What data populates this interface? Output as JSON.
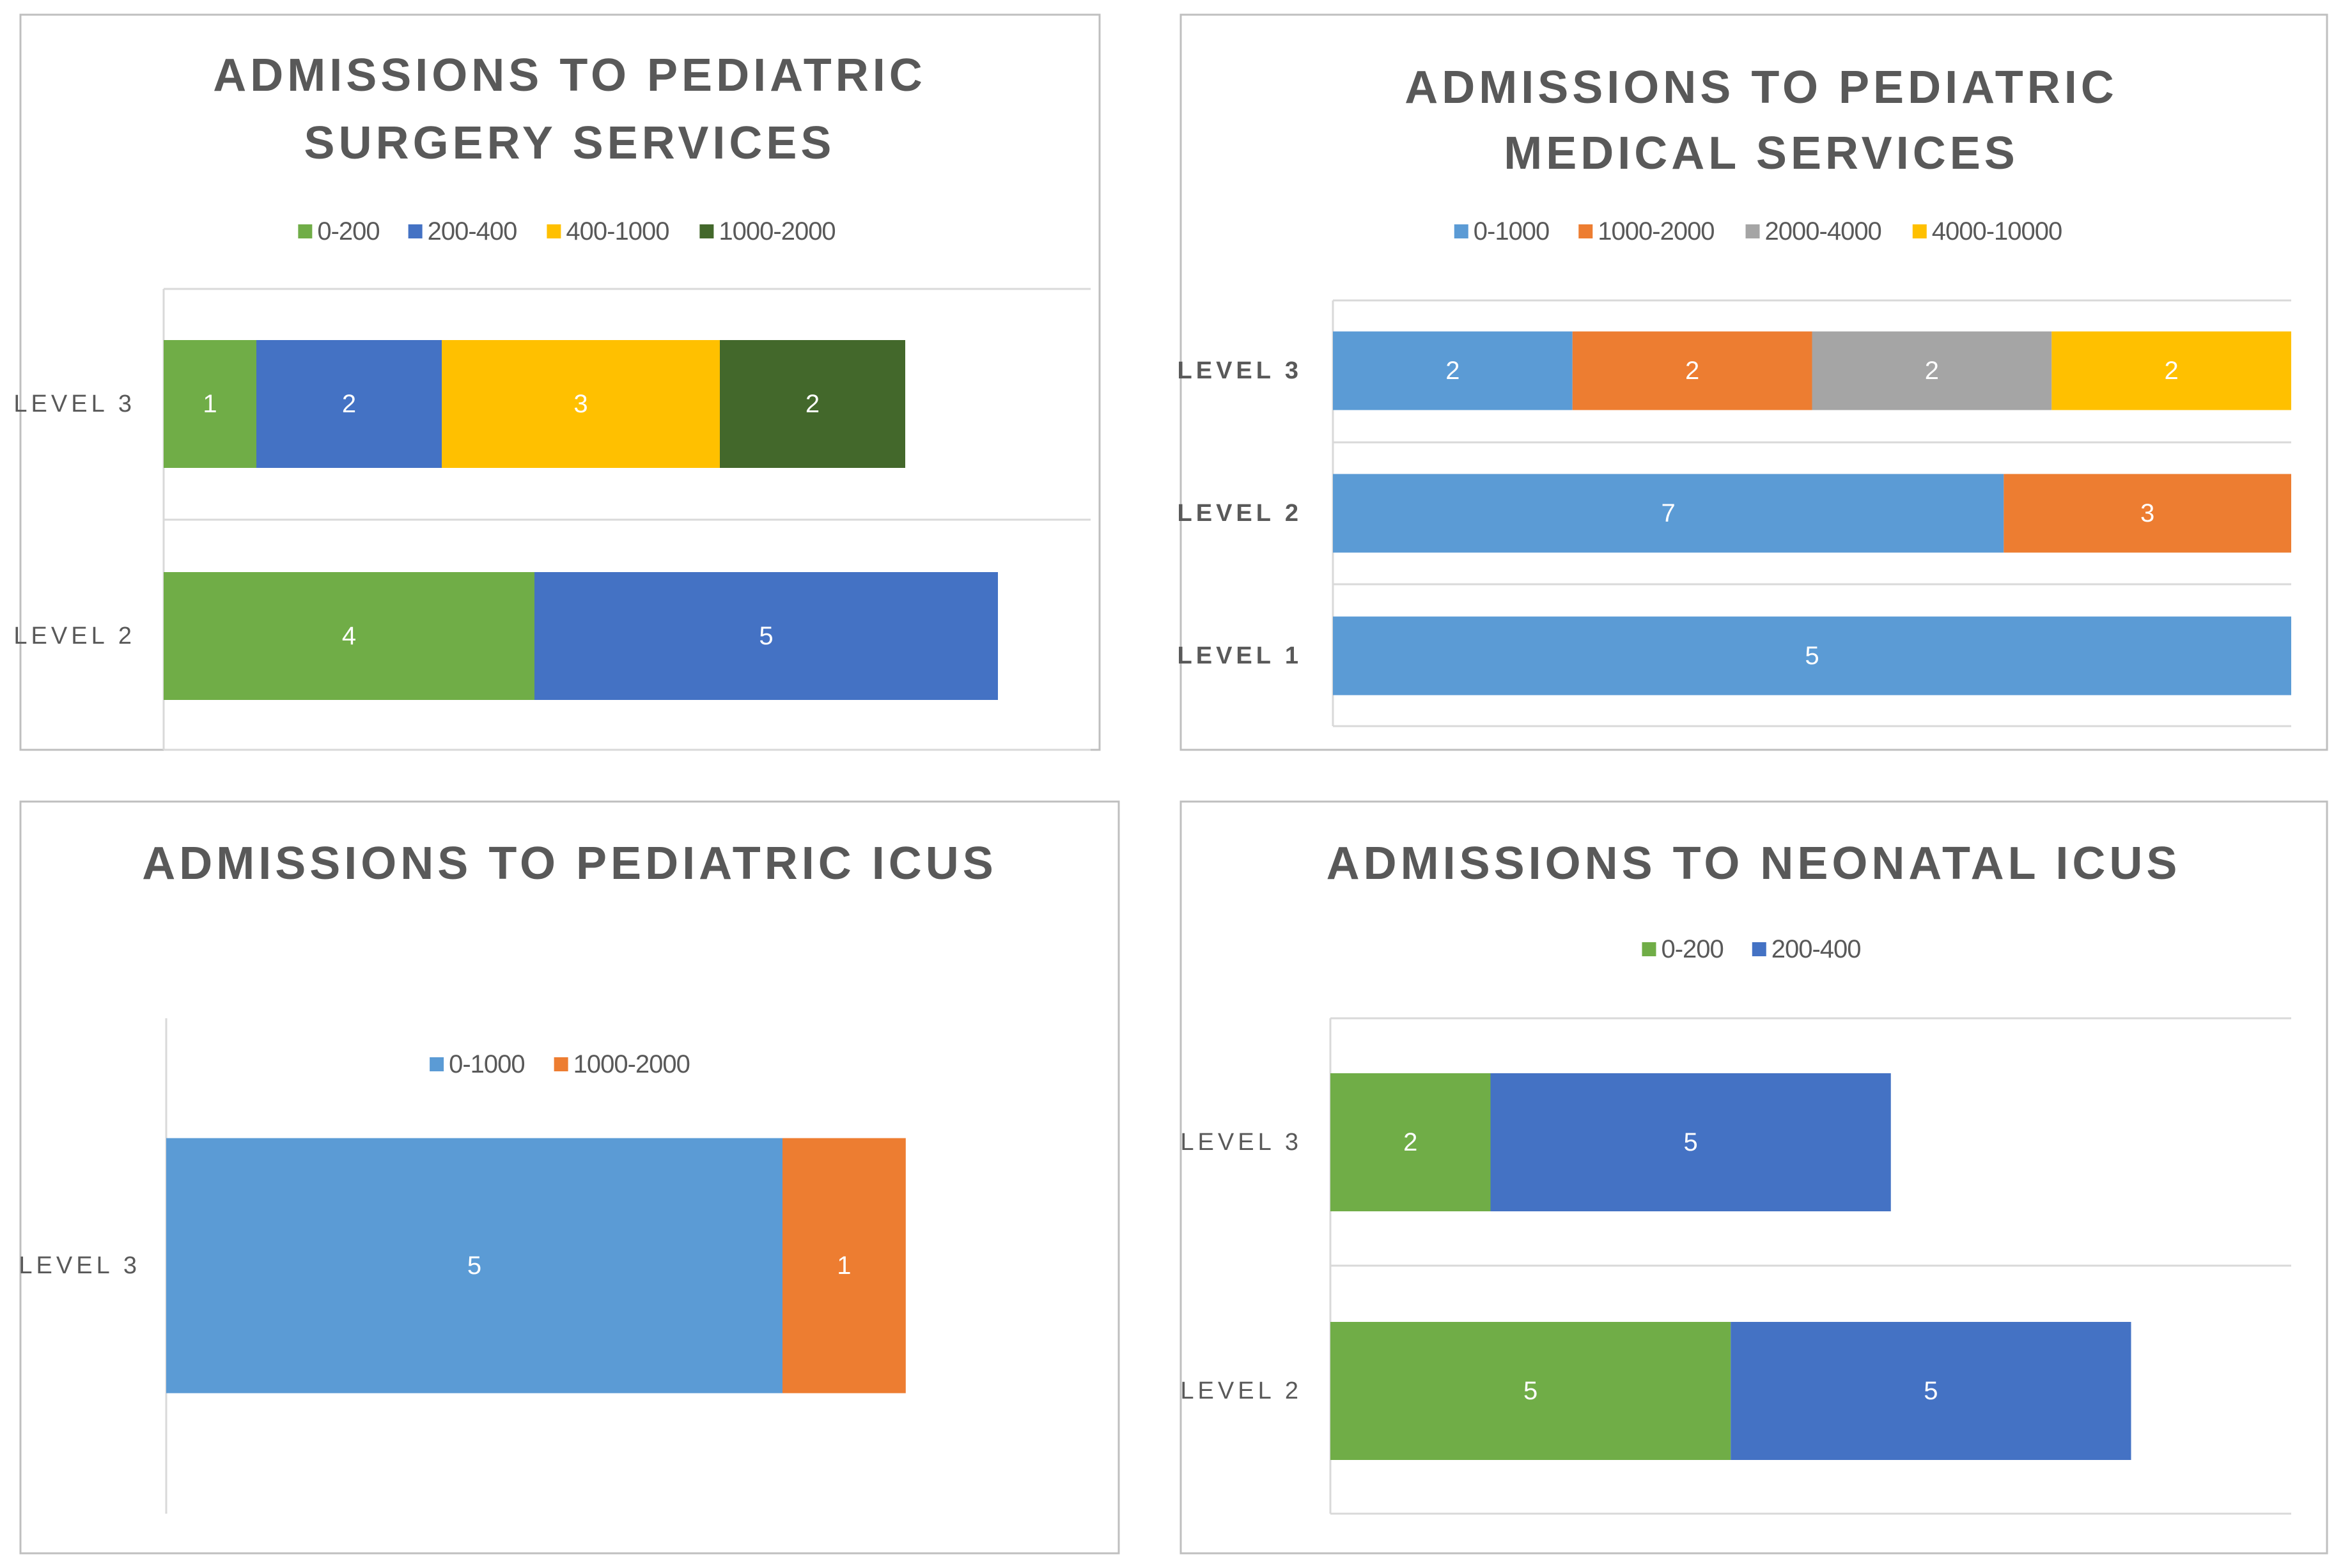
{
  "colors": {
    "green": "#70AD47",
    "blue": "#4472C4",
    "gold": "#FFC000",
    "darkgreen": "#43682B",
    "lightblue": "#5B9BD5",
    "orange": "#ED7D31",
    "gray": "#A5A5A5",
    "title": "#595959",
    "label": "#595959",
    "grid": "#D9D9D9",
    "border": "#BFBFBF",
    "datalabel": "#FFFFFF"
  },
  "chart_data": [
    {
      "type": "bar",
      "orientation": "horizontal",
      "stacked": true,
      "title_lines": [
        "ADMISSIONS TO PEDIATRIC",
        "SURGERY SERVICES"
      ],
      "categories": [
        "LEVEL 3",
        "LEVEL 2"
      ],
      "series": [
        {
          "name": "0-200",
          "color": "#70AD47",
          "values": [
            1,
            4
          ]
        },
        {
          "name": "200-400",
          "color": "#4472C4",
          "values": [
            2,
            5
          ]
        },
        {
          "name": "400-1000",
          "color": "#FFC000",
          "values": [
            3,
            0
          ]
        },
        {
          "name": "1000-2000",
          "color": "#43682B",
          "values": [
            2,
            0
          ]
        }
      ],
      "xlim": [
        0,
        10
      ],
      "legend": "top",
      "data_labels": true
    },
    {
      "type": "bar",
      "orientation": "horizontal",
      "stacked": true,
      "title_lines": [
        "ADMISSIONS TO PEDIATRIC",
        "MEDICAL SERVICES"
      ],
      "categories": [
        "LEVEL 3",
        "LEVEL 2",
        "LEVEL 1"
      ],
      "series": [
        {
          "name": "0-1000",
          "color": "#5B9BD5",
          "values": [
            2,
            7,
            5
          ]
        },
        {
          "name": "1000-2000",
          "color": "#ED7D31",
          "values": [
            2,
            3,
            0
          ]
        },
        {
          "name": "2000-4000",
          "color": "#A5A5A5",
          "values": [
            2,
            0,
            0
          ]
        },
        {
          "name": "4000-10000",
          "color": "#FFC000",
          "values": [
            2,
            0,
            0
          ]
        }
      ],
      "scale": "percent",
      "legend": "top",
      "data_labels": true
    },
    {
      "type": "bar",
      "orientation": "horizontal",
      "stacked": true,
      "title_lines": [
        "ADMISSIONS TO PEDIATRIC ICUS"
      ],
      "categories": [
        "LEVEL 3"
      ],
      "series": [
        {
          "name": "0-1000",
          "color": "#5B9BD5",
          "values": [
            5
          ]
        },
        {
          "name": "1000-2000",
          "color": "#ED7D31",
          "values": [
            1
          ]
        }
      ],
      "xlim": [
        0,
        7.5
      ],
      "legend": "top",
      "data_labels": true
    },
    {
      "type": "bar",
      "orientation": "horizontal",
      "stacked": true,
      "title_lines": [
        "ADMISSIONS TO NEONATAL ICUS"
      ],
      "categories": [
        "LEVEL 3",
        "LEVEL 2"
      ],
      "series": [
        {
          "name": "0-200",
          "color": "#70AD47",
          "values": [
            2,
            5
          ]
        },
        {
          "name": "200-400",
          "color": "#4472C4",
          "values": [
            5,
            5
          ]
        }
      ],
      "xlim": [
        0,
        12
      ],
      "legend": "top",
      "data_labels": true
    }
  ]
}
